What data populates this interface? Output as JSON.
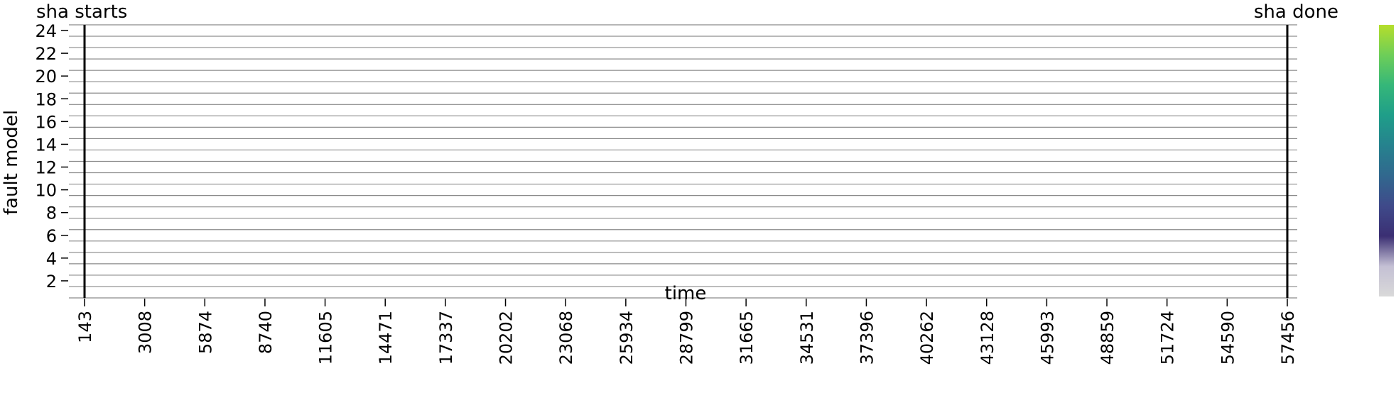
{
  "chart_data": {
    "type": "heatmap",
    "title": "",
    "xlabel": "time",
    "ylabel": "fault model",
    "x_ticks": [
      143,
      3008,
      5874,
      8740,
      11605,
      14471,
      17337,
      20202,
      23068,
      25934,
      28799,
      31665,
      34531,
      37396,
      40262,
      43128,
      45993,
      48859,
      51724,
      54590,
      57456
    ],
    "y_ticks": [
      2,
      4,
      6,
      8,
      10,
      12,
      14,
      16,
      18,
      20,
      22,
      24
    ],
    "y_range": [
      1,
      24
    ],
    "x_range": [
      143,
      57456
    ],
    "grid": "horizontal row separators",
    "values": [],
    "annotations": [
      {
        "label": "sha starts",
        "x": 143
      },
      {
        "label": "sha done",
        "x": 57456
      }
    ],
    "colorbar": {
      "colormap": "viridis",
      "colors": [
        "#d9d9d9",
        "#c4c0d4",
        "#3b2f73",
        "#3f4a8a",
        "#31688e",
        "#26828e",
        "#1f9e89",
        "#35b779",
        "#6ece58",
        "#b5de2b"
      ]
    }
  }
}
